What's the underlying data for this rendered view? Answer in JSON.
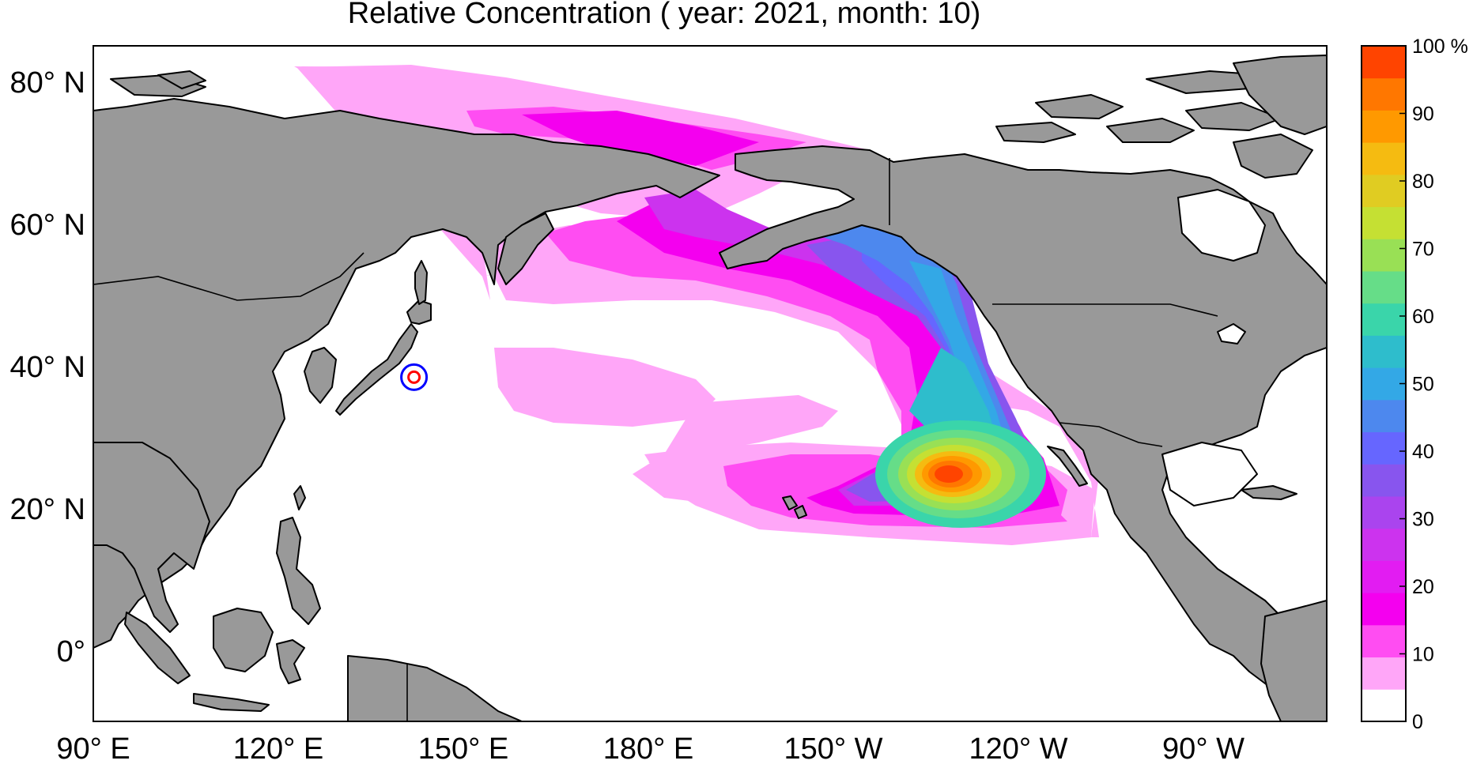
{
  "title": "Relative Concentration ( year: 2021, month: 10)",
  "lat_ticks": [
    {
      "label": "80° N",
      "lat": 80
    },
    {
      "label": "60° N",
      "lat": 60
    },
    {
      "label": "40° N",
      "lat": 40
    },
    {
      "label": "20° N",
      "lat": 20
    },
    {
      "label": "0°",
      "lat": 0
    }
  ],
  "lon_ticks": [
    {
      "label": "90° E",
      "lon": 90
    },
    {
      "label": "120° E",
      "lon": 120
    },
    {
      "label": "150° E",
      "lon": 150
    },
    {
      "label": "180° E",
      "lon": 180
    },
    {
      "label": "150° W",
      "lon": 210
    },
    {
      "label": "120° W",
      "lon": 240
    },
    {
      "label": "90° W",
      "lon": 270
    }
  ],
  "colorbar": {
    "tick_labels": [
      "100 %",
      "90",
      "80",
      "70",
      "60",
      "50",
      "40",
      "30",
      "20",
      "10",
      "0"
    ],
    "colors_bottom_to_top": [
      "#ffffff",
      "#ffa6f8",
      "#ff4df2",
      "#f400ef",
      "#e21cf2",
      "#cc33ee",
      "#aa44ee",
      "#8855ee",
      "#6666ff",
      "#4d88ee",
      "#33a8e6",
      "#2ebdcc",
      "#3ad5aa",
      "#66dd88",
      "#99e055",
      "#c5e033",
      "#e0cc22",
      "#f5bb11",
      "#ff9900",
      "#ff7700",
      "#ff4400"
    ]
  },
  "colors": {
    "land": "#999999",
    "coastline": "#000000",
    "ocean": "#ffffff",
    "source_marker_outer": "#0000ff",
    "source_marker_inner": "#ff0000"
  },
  "source_marker": {
    "lon": 142,
    "lat": 38.4
  }
}
